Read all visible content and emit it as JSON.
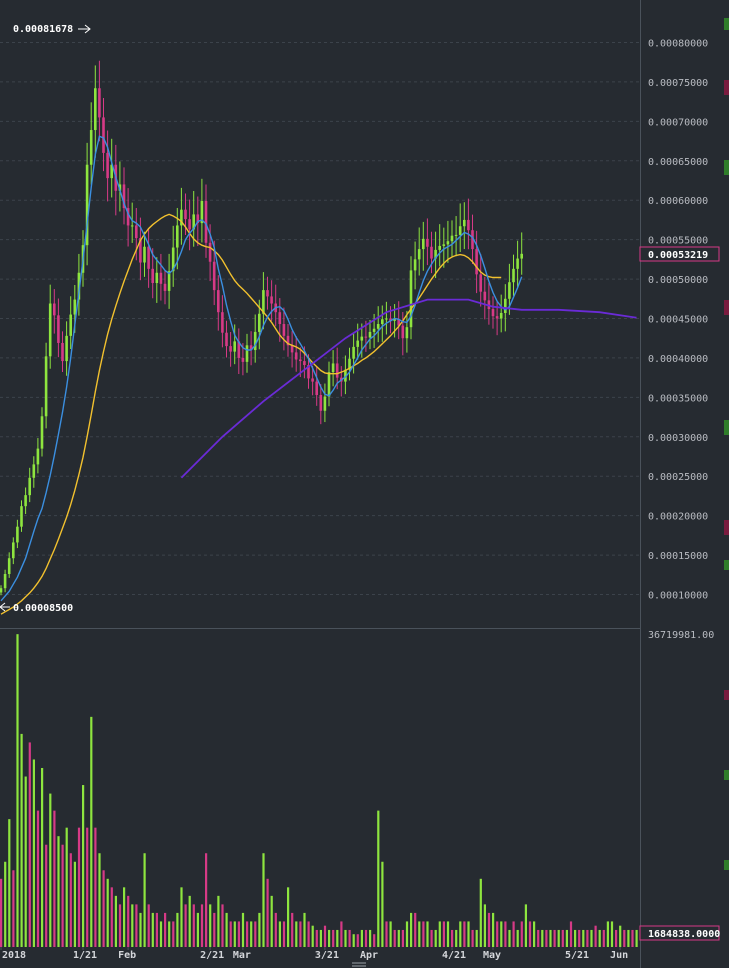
{
  "chart_data": {
    "type": "candlestick",
    "price_axis": {
      "tick_labels": [
        "0.00080000",
        "0.00075000",
        "0.00070000",
        "0.00065000",
        "0.00060000",
        "0.00055000",
        "0.00050000",
        "0.00045000",
        "0.00040000",
        "0.00035000",
        "0.00030000",
        "0.00025000",
        "0.00020000",
        "0.00015000",
        "0.00010000"
      ],
      "range": [
        7e-05,
        0.00084
      ],
      "last_price_label": "0.00053219",
      "last_price": 0.00053219,
      "high_marker_label": "0.00081678",
      "high": 0.00081678,
      "low_marker_label": "0.00008500",
      "low": 8.5e-05,
      "grid": true
    },
    "volume_axis": {
      "max_label": "36719981.00",
      "max": 36719981,
      "last_volume_label": "1684838.0000",
      "last_volume": 1684838
    },
    "x_axis": {
      "ticks": [
        "2018",
        "1/21",
        "Feb",
        "2/21",
        "Mar",
        "3/21",
        "Apr",
        "4/21",
        "May",
        "5/21",
        "Jun"
      ],
      "tick_day_index": [
        0,
        20,
        31,
        51,
        59,
        79,
        90,
        110,
        120,
        140,
        151
      ]
    },
    "closes": [
      0.000108,
      0.000126,
      0.000146,
      0.000166,
      0.000186,
      0.000212,
      0.000226,
      0.000248,
      0.000265,
      0.000285,
      0.000326,
      0.000402,
      0.000469,
      0.000454,
      0.000419,
      0.000396,
      0.000428,
      0.000455,
      0.000474,
      0.000508,
      0.000543,
      0.000645,
      0.000689,
      0.000742,
      0.000705,
      0.00066,
      0.000628,
      0.000645,
      0.000612,
      0.00062,
      0.00059,
      0.000568,
      0.000568,
      0.000552,
      0.000521,
      0.000541,
      0.000513,
      0.000495,
      0.000508,
      0.000494,
      0.000485,
      0.00051,
      0.00054,
      0.000568,
      0.000588,
      0.000576,
      0.000563,
      0.000582,
      0.000571,
      0.000599,
      0.000546,
      0.000522,
      0.000486,
      0.000458,
      0.000432,
      0.000415,
      0.000408,
      0.000421,
      0.0004,
      0.000395,
      0.000416,
      0.00041,
      0.000433,
      0.000456,
      0.000486,
      0.000478,
      0.000469,
      0.000458,
      0.000443,
      0.000428,
      0.000416,
      0.000407,
      0.000398,
      0.000396,
      0.000391,
      0.000374,
      0.00037,
      0.000353,
      0.000333,
      0.000351,
      0.000382,
      0.000393,
      0.000375,
      0.00037,
      0.000385,
      0.000399,
      0.000414,
      0.000422,
      0.000427,
      0.000426,
      0.000433,
      0.000437,
      0.000443,
      0.000449,
      0.00045,
      0.000447,
      0.000449,
      0.000441,
      0.000425,
      0.000439,
      0.000511,
      0.000525,
      0.000538,
      0.000551,
      0.000541,
      0.000526,
      0.000537,
      0.000542,
      0.000544,
      0.000548,
      0.000555,
      0.000556,
      0.000567,
      0.000575,
      0.000562,
      0.000538,
      0.000506,
      0.000484,
      0.000473,
      0.000462,
      0.000453,
      0.00045,
      0.000457,
      0.000475,
      0.000496,
      0.000513,
      0.000526,
      0.000532
    ],
    "ma_fast": [
      9.2e-05,
      9.8e-05,
      0.000104,
      0.000113,
      0.000122,
      0.000134,
      0.000146,
      0.000163,
      0.00018,
      0.000196,
      0.000209,
      0.000229,
      0.000251,
      0.000276,
      0.000303,
      0.000331,
      0.000363,
      0.0004,
      0.000442,
      0.000483,
      0.000524,
      0.00057,
      0.000616,
      0.000658,
      0.000681,
      0.000679,
      0.000667,
      0.000648,
      0.000629,
      0.000613,
      0.000596,
      0.000583,
      0.000574,
      0.000571,
      0.000566,
      0.000555,
      0.000544,
      0.000531,
      0.000524,
      0.000518,
      0.000511,
      0.000507,
      0.000512,
      0.000522,
      0.000535,
      0.00055,
      0.000558,
      0.000564,
      0.000573,
      0.000575,
      0.00057,
      0.000557,
      0.00054,
      0.000513,
      0.000492,
      0.000467,
      0.000447,
      0.000429,
      0.00042,
      0.000413,
      0.00041,
      0.00041,
      0.000416,
      0.000427,
      0.000441,
      0.000452,
      0.000459,
      0.000464,
      0.000465,
      0.00046,
      0.000449,
      0.000436,
      0.000426,
      0.000418,
      0.000409,
      0.000399,
      0.000387,
      0.000375,
      0.000363,
      0.000354,
      0.000352,
      0.000359,
      0.000368,
      0.000372,
      0.000376,
      0.000382,
      0.000391,
      0.0004,
      0.00041,
      0.000417,
      0.000424,
      0.000428,
      0.000434,
      0.00044,
      0.000444,
      0.000447,
      0.00045,
      0.000449,
      0.000446,
      0.000445,
      0.000453,
      0.000467,
      0.000483,
      0.000498,
      0.00051,
      0.000519,
      0.000527,
      0.000533,
      0.000538,
      0.000541,
      0.000544,
      0.000549,
      0.000554,
      0.000559,
      0.000557,
      0.000553,
      0.000543,
      0.00053,
      0.000514,
      0.000497,
      0.000483,
      0.000472,
      0.000465,
      0.000461,
      0.000465,
      0.000477,
      0.000489,
      0.000503
    ],
    "ma_slow": [
      7.5e-05,
      7.8e-05,
      8.1e-05,
      8.4e-05,
      8.8e-05,
      9.2e-05,
      9.7e-05,
      0.000102,
      0.000108,
      0.000115,
      0.000123,
      0.000133,
      0.000145,
      0.000157,
      0.00017,
      0.000184,
      0.000198,
      0.000214,
      0.000232,
      0.000252,
      0.000274,
      0.0003,
      0.000328,
      0.000357,
      0.000384,
      0.000408,
      0.00043,
      0.000449,
      0.000466,
      0.000482,
      0.000497,
      0.000511,
      0.000525,
      0.000537,
      0.000549,
      0.000557,
      0.000564,
      0.000569,
      0.000573,
      0.000577,
      0.00058,
      0.000582,
      0.00058,
      0.000577,
      0.000573,
      0.000566,
      0.000558,
      0.000551,
      0.000546,
      0.000543,
      0.000541,
      0.00054,
      0.000536,
      0.000531,
      0.000524,
      0.000515,
      0.000506,
      0.000498,
      0.000492,
      0.000487,
      0.000482,
      0.000476,
      0.00047,
      0.000464,
      0.000458,
      0.000452,
      0.000445,
      0.000437,
      0.000429,
      0.000423,
      0.000418,
      0.000416,
      0.000414,
      0.000411,
      0.000406,
      0.0004,
      0.000394,
      0.000389,
      0.000384,
      0.000381,
      0.00038,
      0.00038,
      0.00038,
      0.000382,
      0.000384,
      0.000387,
      0.00039,
      0.000393,
      0.000397,
      0.0004,
      0.000404,
      0.000408,
      0.000413,
      0.000418,
      0.000423,
      0.000428,
      0.000434,
      0.00044,
      0.000447,
      0.000455,
      0.000462,
      0.000469,
      0.000476,
      0.000484,
      0.000492,
      0.0005,
      0.000507,
      0.000514,
      0.00052,
      0.000525,
      0.000528,
      0.00053,
      0.000531,
      0.00053,
      0.000527,
      0.000522,
      0.000515,
      0.000509,
      0.000505,
      0.000503,
      0.000502,
      0.000502,
      0.000502
    ],
    "ma_long": [
      {
        "day": 44,
        "value": 0.000248
      },
      {
        "day": 54,
        "value": 0.0003
      },
      {
        "day": 64,
        "value": 0.000345
      },
      {
        "day": 74,
        "value": 0.000385
      },
      {
        "day": 84,
        "value": 0.000425
      },
      {
        "day": 94,
        "value": 0.000458
      },
      {
        "day": 104,
        "value": 0.000474
      },
      {
        "day": 114,
        "value": 0.000474
      },
      {
        "day": 120,
        "value": 0.000465
      },
      {
        "day": 127,
        "value": 0.000461
      },
      {
        "day": 136,
        "value": 0.000461
      },
      {
        "day": 146,
        "value": 0.000458
      },
      {
        "day": 155,
        "value": 0.000451
      }
    ],
    "volume_bars": [
      {
        "d": 0,
        "v": 8,
        "c": "r"
      },
      {
        "d": 1,
        "v": 10,
        "c": "g"
      },
      {
        "d": 2,
        "v": 15,
        "c": "g"
      },
      {
        "d": 3,
        "v": 9,
        "c": "r"
      },
      {
        "d": 4,
        "v": 36.7,
        "c": "g"
      },
      {
        "d": 5,
        "v": 25,
        "c": "g"
      },
      {
        "d": 6,
        "v": 20,
        "c": "g"
      },
      {
        "d": 7,
        "v": 24,
        "c": "r"
      },
      {
        "d": 8,
        "v": 22,
        "c": "g"
      },
      {
        "d": 9,
        "v": 16,
        "c": "r"
      },
      {
        "d": 10,
        "v": 21,
        "c": "g"
      },
      {
        "d": 11,
        "v": 12,
        "c": "r"
      },
      {
        "d": 12,
        "v": 18,
        "c": "g"
      },
      {
        "d": 13,
        "v": 16,
        "c": "r"
      },
      {
        "d": 14,
        "v": 13,
        "c": "g"
      },
      {
        "d": 15,
        "v": 12,
        "c": "r"
      },
      {
        "d": 16,
        "v": 14,
        "c": "g"
      },
      {
        "d": 17,
        "v": 11,
        "c": "r"
      },
      {
        "d": 18,
        "v": 10,
        "c": "g"
      },
      {
        "d": 19,
        "v": 14,
        "c": "r"
      },
      {
        "d": 20,
        "v": 19,
        "c": "g"
      },
      {
        "d": 21,
        "v": 14,
        "c": "r"
      },
      {
        "d": 22,
        "v": 27,
        "c": "g"
      },
      {
        "d": 23,
        "v": 14,
        "c": "r"
      },
      {
        "d": 24,
        "v": 11,
        "c": "g"
      },
      {
        "d": 25,
        "v": 9,
        "c": "r"
      },
      {
        "d": 26,
        "v": 8,
        "c": "g"
      },
      {
        "d": 27,
        "v": 7,
        "c": "r"
      },
      {
        "d": 28,
        "v": 6,
        "c": "g"
      },
      {
        "d": 29,
        "v": 5,
        "c": "r"
      },
      {
        "d": 30,
        "v": 7,
        "c": "g"
      },
      {
        "d": 31,
        "v": 6,
        "c": "r"
      },
      {
        "d": 32,
        "v": 5,
        "c": "g"
      },
      {
        "d": 33,
        "v": 5,
        "c": "r"
      },
      {
        "d": 34,
        "v": 4,
        "c": "g"
      },
      {
        "d": 35,
        "v": 11,
        "c": "g"
      },
      {
        "d": 36,
        "v": 5,
        "c": "r"
      },
      {
        "d": 37,
        "v": 4,
        "c": "g"
      },
      {
        "d": 38,
        "v": 4,
        "c": "r"
      },
      {
        "d": 39,
        "v": 3,
        "c": "g"
      },
      {
        "d": 40,
        "v": 4,
        "c": "r"
      },
      {
        "d": 41,
        "v": 3,
        "c": "g"
      },
      {
        "d": 42,
        "v": 3,
        "c": "r"
      },
      {
        "d": 43,
        "v": 4,
        "c": "g"
      },
      {
        "d": 44,
        "v": 7,
        "c": "g"
      },
      {
        "d": 45,
        "v": 5,
        "c": "r"
      },
      {
        "d": 46,
        "v": 6,
        "c": "g"
      },
      {
        "d": 47,
        "v": 5,
        "c": "r"
      },
      {
        "d": 48,
        "v": 4,
        "c": "g"
      },
      {
        "d": 49,
        "v": 5,
        "c": "r"
      },
      {
        "d": 50,
        "v": 11,
        "c": "r"
      },
      {
        "d": 51,
        "v": 5,
        "c": "g"
      },
      {
        "d": 52,
        "v": 4,
        "c": "r"
      },
      {
        "d": 53,
        "v": 6,
        "c": "g"
      },
      {
        "d": 54,
        "v": 5,
        "c": "r"
      },
      {
        "d": 55,
        "v": 4,
        "c": "g"
      },
      {
        "d": 56,
        "v": 3,
        "c": "r"
      },
      {
        "d": 57,
        "v": 3,
        "c": "g"
      },
      {
        "d": 58,
        "v": 3,
        "c": "r"
      },
      {
        "d": 59,
        "v": 4,
        "c": "g"
      },
      {
        "d": 60,
        "v": 3,
        "c": "r"
      },
      {
        "d": 61,
        "v": 3,
        "c": "g"
      },
      {
        "d": 62,
        "v": 3,
        "c": "r"
      },
      {
        "d": 63,
        "v": 4,
        "c": "g"
      },
      {
        "d": 64,
        "v": 11,
        "c": "g"
      },
      {
        "d": 65,
        "v": 8,
        "c": "r"
      },
      {
        "d": 66,
        "v": 6,
        "c": "g"
      },
      {
        "d": 67,
        "v": 4,
        "c": "r"
      },
      {
        "d": 68,
        "v": 3,
        "c": "g"
      },
      {
        "d": 69,
        "v": 3,
        "c": "r"
      },
      {
        "d": 70,
        "v": 7,
        "c": "g"
      },
      {
        "d": 71,
        "v": 4,
        "c": "r"
      },
      {
        "d": 72,
        "v": 3,
        "c": "g"
      },
      {
        "d": 73,
        "v": 3,
        "c": "r"
      },
      {
        "d": 74,
        "v": 4,
        "c": "g"
      },
      {
        "d": 75,
        "v": 3,
        "c": "r"
      },
      {
        "d": 76,
        "v": 2.5,
        "c": "g"
      },
      {
        "d": 77,
        "v": 2,
        "c": "r"
      },
      {
        "d": 78,
        "v": 2,
        "c": "g"
      },
      {
        "d": 79,
        "v": 2.5,
        "c": "r"
      },
      {
        "d": 80,
        "v": 2,
        "c": "g"
      },
      {
        "d": 81,
        "v": 2,
        "c": "r"
      },
      {
        "d": 82,
        "v": 2,
        "c": "g"
      },
      {
        "d": 83,
        "v": 3,
        "c": "r"
      },
      {
        "d": 84,
        "v": 2,
        "c": "g"
      },
      {
        "d": 85,
        "v": 2,
        "c": "r"
      },
      {
        "d": 86,
        "v": 1.5,
        "c": "g"
      },
      {
        "d": 87,
        "v": 1.5,
        "c": "r"
      },
      {
        "d": 88,
        "v": 2,
        "c": "g"
      },
      {
        "d": 89,
        "v": 2,
        "c": "r"
      },
      {
        "d": 90,
        "v": 2,
        "c": "g"
      },
      {
        "d": 91,
        "v": 1.5,
        "c": "r"
      },
      {
        "d": 92,
        "v": 16,
        "c": "g"
      },
      {
        "d": 93,
        "v": 10,
        "c": "g"
      },
      {
        "d": 94,
        "v": 3,
        "c": "r"
      },
      {
        "d": 95,
        "v": 3,
        "c": "g"
      },
      {
        "d": 96,
        "v": 2,
        "c": "r"
      },
      {
        "d": 97,
        "v": 2,
        "c": "g"
      },
      {
        "d": 98,
        "v": 2,
        "c": "r"
      },
      {
        "d": 99,
        "v": 3,
        "c": "g"
      },
      {
        "d": 100,
        "v": 4,
        "c": "g"
      },
      {
        "d": 101,
        "v": 4,
        "c": "r"
      },
      {
        "d": 102,
        "v": 3,
        "c": "g"
      },
      {
        "d": 103,
        "v": 3,
        "c": "r"
      },
      {
        "d": 104,
        "v": 3,
        "c": "g"
      },
      {
        "d": 105,
        "v": 2,
        "c": "r"
      },
      {
        "d": 106,
        "v": 2,
        "c": "g"
      },
      {
        "d": 107,
        "v": 3,
        "c": "g"
      },
      {
        "d": 108,
        "v": 3,
        "c": "r"
      },
      {
        "d": 109,
        "v": 3,
        "c": "g"
      },
      {
        "d": 110,
        "v": 2,
        "c": "r"
      },
      {
        "d": 111,
        "v": 2,
        "c": "g"
      },
      {
        "d": 112,
        "v": 3,
        "c": "g"
      },
      {
        "d": 113,
        "v": 3,
        "c": "r"
      },
      {
        "d": 114,
        "v": 3,
        "c": "g"
      },
      {
        "d": 115,
        "v": 2,
        "c": "r"
      },
      {
        "d": 116,
        "v": 2,
        "c": "g"
      },
      {
        "d": 117,
        "v": 8,
        "c": "g"
      },
      {
        "d": 118,
        "v": 5,
        "c": "g"
      },
      {
        "d": 119,
        "v": 4,
        "c": "r"
      },
      {
        "d": 120,
        "v": 4,
        "c": "g"
      },
      {
        "d": 121,
        "v": 3,
        "c": "r"
      },
      {
        "d": 122,
        "v": 3,
        "c": "g"
      },
      {
        "d": 123,
        "v": 3,
        "c": "r"
      },
      {
        "d": 124,
        "v": 2,
        "c": "g"
      },
      {
        "d": 125,
        "v": 3,
        "c": "r"
      },
      {
        "d": 126,
        "v": 2,
        "c": "g"
      },
      {
        "d": 127,
        "v": 3,
        "c": "r"
      },
      {
        "d": 128,
        "v": 5,
        "c": "g"
      },
      {
        "d": 129,
        "v": 3,
        "c": "r"
      },
      {
        "d": 130,
        "v": 3,
        "c": "g"
      },
      {
        "d": 131,
        "v": 2,
        "c": "r"
      },
      {
        "d": 132,
        "v": 2,
        "c": "g"
      },
      {
        "d": 133,
        "v": 2,
        "c": "r"
      },
      {
        "d": 134,
        "v": 2,
        "c": "g"
      },
      {
        "d": 135,
        "v": 2,
        "c": "r"
      },
      {
        "d": 136,
        "v": 2,
        "c": "g"
      },
      {
        "d": 137,
        "v": 2,
        "c": "r"
      },
      {
        "d": 138,
        "v": 2,
        "c": "g"
      },
      {
        "d": 139,
        "v": 3,
        "c": "r"
      },
      {
        "d": 140,
        "v": 2,
        "c": "g"
      },
      {
        "d": 141,
        "v": 2,
        "c": "r"
      },
      {
        "d": 142,
        "v": 2,
        "c": "g"
      },
      {
        "d": 143,
        "v": 2,
        "c": "r"
      },
      {
        "d": 144,
        "v": 2,
        "c": "g"
      },
      {
        "d": 145,
        "v": 2.5,
        "c": "r"
      },
      {
        "d": 146,
        "v": 2,
        "c": "g"
      },
      {
        "d": 147,
        "v": 2,
        "c": "r"
      },
      {
        "d": 148,
        "v": 3,
        "c": "g"
      },
      {
        "d": 149,
        "v": 3,
        "c": "g"
      },
      {
        "d": 150,
        "v": 2,
        "c": "r"
      },
      {
        "d": 151,
        "v": 2.5,
        "c": "g"
      },
      {
        "d": 152,
        "v": 2,
        "c": "r"
      },
      {
        "d": 153,
        "v": 2,
        "c": "g"
      },
      {
        "d": 154,
        "v": 2,
        "c": "r"
      },
      {
        "d": 155,
        "v": 2,
        "c": "g"
      }
    ],
    "volume_unit_millions": true,
    "colors": {
      "background": "#262b31",
      "grid": "#3c434b",
      "up": "#8ee53f",
      "down": "#d63a86",
      "ma_fast": "#3b8fe0",
      "ma_slow": "#f2c12e",
      "ma_long": "#6a2bd6",
      "axis_text": "#b9bcc2",
      "label_box": "#d63a86",
      "edge_green": "#2f7d2a",
      "edge_red": "#7a1c3f"
    }
  }
}
